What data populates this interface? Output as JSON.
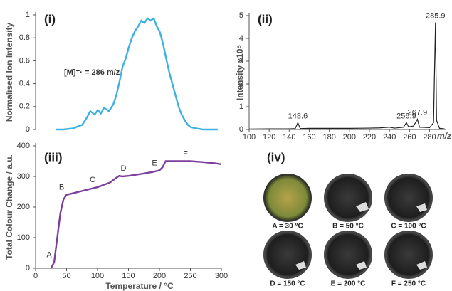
{
  "chart_data": [
    {
      "type": "line",
      "panel_label": "(i)",
      "ylabel": "Normalised Ion Intensity",
      "annotation": "[M]⁺· = 286 m/z",
      "color": "#3cb1e2",
      "x": [
        32,
        45,
        60,
        75,
        82,
        88,
        95,
        100,
        105,
        110,
        118,
        125,
        130,
        135,
        140,
        145,
        150,
        155,
        160,
        165,
        170,
        175,
        180,
        185,
        190,
        195,
        200,
        205,
        210,
        215,
        220,
        225,
        230,
        235,
        240,
        245,
        250,
        258,
        270,
        293
      ],
      "values": [
        0,
        0,
        0.01,
        0.04,
        0.1,
        0.16,
        0.13,
        0.17,
        0.14,
        0.19,
        0.16,
        0.22,
        0.3,
        0.42,
        0.55,
        0.62,
        0.72,
        0.8,
        0.86,
        0.9,
        0.95,
        0.93,
        0.97,
        0.95,
        0.97,
        0.9,
        0.85,
        0.75,
        0.62,
        0.5,
        0.4,
        0.3,
        0.2,
        0.13,
        0.08,
        0.04,
        0.02,
        0.01,
        0,
        0
      ],
      "xlim": [
        0,
        300
      ],
      "ylim": [
        0,
        1
      ],
      "yticks": [
        0,
        0.2,
        0.4,
        0.6,
        0.8,
        1
      ]
    },
    {
      "type": "line",
      "panel_label": "(ii)",
      "ylabel": "Intensity x10⁵",
      "xlabel": "m/z",
      "color": "#222222",
      "x": [
        100,
        120,
        140,
        146,
        148.6,
        151,
        160,
        180,
        200,
        220,
        230,
        240,
        245,
        250,
        254,
        256.9,
        259,
        264,
        267.9,
        270,
        280,
        284,
        285.9,
        287,
        290,
        295
      ],
      "values": [
        0.02,
        0.03,
        0.03,
        0.04,
        0.3,
        0.04,
        0.05,
        0.05,
        0.05,
        0.06,
        0.07,
        0.1,
        0.06,
        0.08,
        0.1,
        0.3,
        0.12,
        0.15,
        0.45,
        0.1,
        0.08,
        0.3,
        4.7,
        0.4,
        0.05,
        0.03
      ],
      "point_labels": [
        null,
        null,
        null,
        null,
        "148.6",
        null,
        null,
        null,
        null,
        null,
        null,
        null,
        null,
        null,
        null,
        "256.9",
        null,
        null,
        "267.9",
        null,
        null,
        null,
        "285.9",
        null,
        null,
        null
      ],
      "xlim": [
        100,
        296
      ],
      "xticks": [
        100,
        120,
        140,
        160,
        180,
        200,
        220,
        240,
        260,
        280
      ],
      "ylim": [
        0,
        5
      ],
      "yticks": [
        0,
        1,
        2,
        3,
        4,
        5
      ]
    },
    {
      "type": "line",
      "panel_label": "(iii)",
      "ylabel": "Total Colour Change / a.u.",
      "xlabel": "Temperature / °C",
      "color": "#7b3f9e",
      "x": [
        25,
        30,
        35,
        40,
        45,
        50,
        60,
        70,
        80,
        100,
        120,
        130,
        135,
        140,
        150,
        170,
        190,
        200,
        205,
        210,
        230,
        250,
        270,
        290,
        300
      ],
      "values": [
        0,
        20,
        100,
        180,
        225,
        240,
        245,
        250,
        255,
        265,
        280,
        295,
        302,
        300,
        302,
        308,
        315,
        320,
        330,
        350,
        350,
        350,
        347,
        343,
        340
      ],
      "point_labels": [
        null,
        "A",
        null,
        null,
        null,
        "B",
        null,
        null,
        null,
        "C",
        null,
        null,
        null,
        null,
        "D",
        null,
        null,
        "E",
        null,
        null,
        null,
        "F",
        null,
        null,
        null
      ],
      "xlim": [
        0,
        300
      ],
      "xticks": [
        0,
        50,
        100,
        150,
        200,
        250,
        300
      ],
      "ylim": [
        0,
        400
      ],
      "yticks": [
        0,
        100,
        200,
        300,
        400
      ]
    }
  ],
  "photos": {
    "panel_label": "(iv)",
    "captions": [
      "A = 30 °C",
      "B = 50 °C",
      "C = 100 °C",
      "D = 150 °C",
      "E = 200 °C",
      "F = 250 °C"
    ]
  }
}
